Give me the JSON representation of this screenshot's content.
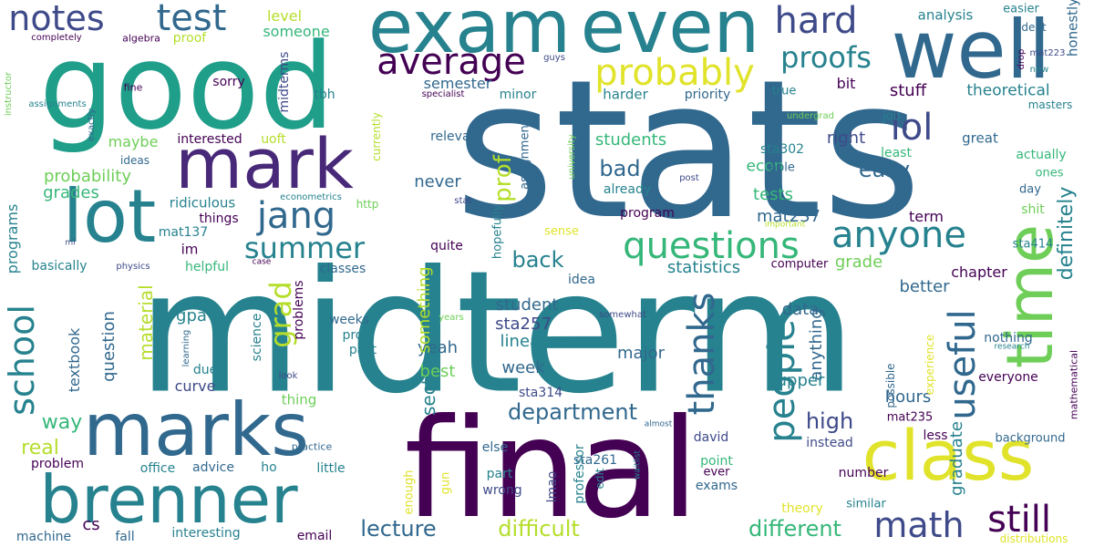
{
  "words": [
    {
      "text": "stats",
      "color": "#31688e"
    },
    {
      "text": "midterm",
      "color": "#26828e"
    },
    {
      "text": "good",
      "color": "#1f9e89"
    },
    {
      "text": "final",
      "color": "#440154"
    },
    {
      "text": "exam",
      "color": "#26828e"
    },
    {
      "text": "even",
      "color": "#26828e"
    },
    {
      "text": "well",
      "color": "#31688e"
    },
    {
      "text": "mark",
      "color": "#482878"
    },
    {
      "text": "lot",
      "color": "#26828e"
    },
    {
      "text": "marks",
      "color": "#31688e"
    },
    {
      "text": "brenner",
      "color": "#26828e"
    },
    {
      "text": "class",
      "color": "#e0e32a"
    },
    {
      "text": "time",
      "color": "#6ece58"
    },
    {
      "text": "notes",
      "color": "#3e4a89"
    },
    {
      "text": "test",
      "color": "#31688e"
    },
    {
      "text": "hard",
      "color": "#3e4a89"
    },
    {
      "text": "average",
      "color": "#440154"
    },
    {
      "text": "probably",
      "color": "#e0e32a"
    },
    {
      "text": "proofs",
      "color": "#26828e"
    },
    {
      "text": "lol",
      "color": "#3e4a89"
    },
    {
      "text": "jang",
      "color": "#31688e"
    },
    {
      "text": "summer",
      "color": "#26828e"
    },
    {
      "text": "questions",
      "color": "#35b779"
    },
    {
      "text": "anyone",
      "color": "#26828e"
    },
    {
      "text": "school",
      "color": "#26828e"
    },
    {
      "text": "grad",
      "color": "#b5de2b"
    },
    {
      "text": "thanks",
      "color": "#31688e"
    },
    {
      "text": "people",
      "color": "#26828e"
    },
    {
      "text": "useful",
      "color": "#31688e"
    },
    {
      "text": "math",
      "color": "#3e4a89"
    },
    {
      "text": "still",
      "color": "#440154"
    },
    {
      "text": "department",
      "color": "#31688e"
    },
    {
      "text": "lecture",
      "color": "#31688e"
    },
    {
      "text": "difficult",
      "color": "#b5de2b"
    },
    {
      "text": "different",
      "color": "#35b779"
    },
    {
      "text": "high",
      "color": "#3e4a89"
    },
    {
      "text": "easy",
      "color": "#31688e"
    },
    {
      "text": "prof",
      "color": "#b5de2b"
    },
    {
      "text": "back",
      "color": "#26828e"
    },
    {
      "text": "bad",
      "color": "#31688e"
    },
    {
      "text": "definitely",
      "color": "#26828e"
    },
    {
      "text": "graduate",
      "color": "#26828e"
    },
    {
      "text": "material",
      "color": "#b5de2b"
    },
    {
      "text": "way",
      "color": "#35b779"
    },
    {
      "text": "real",
      "color": "#b5de2b"
    },
    {
      "text": "section",
      "color": "#26828e"
    },
    {
      "text": "anything",
      "color": "#31688e"
    },
    {
      "text": "data",
      "color": "#31688e"
    },
    {
      "text": "upper",
      "color": "#26828e"
    },
    {
      "text": "hours",
      "color": "#31688e"
    },
    {
      "text": "week",
      "color": "#31688e"
    },
    {
      "text": "major",
      "color": "#31688e"
    },
    {
      "text": "best",
      "color": "#6ece58"
    },
    {
      "text": "yeah",
      "color": "#31688e"
    },
    {
      "text": "linear",
      "color": "#26828e"
    },
    {
      "text": "sta257",
      "color": "#3e4a89"
    },
    {
      "text": "student",
      "color": "#31688e"
    },
    {
      "text": "something",
      "color": "#b5de2b"
    },
    {
      "text": "statistics",
      "color": "#26828e"
    },
    {
      "text": "grade",
      "color": "#6ece58"
    },
    {
      "text": "better",
      "color": "#31688e"
    },
    {
      "text": "chapter",
      "color": "#440154"
    },
    {
      "text": "tests",
      "color": "#35b779"
    },
    {
      "text": "mat237",
      "color": "#31688e"
    },
    {
      "text": "term",
      "color": "#440154"
    },
    {
      "text": "students",
      "color": "#35b779"
    },
    {
      "text": "never",
      "color": "#31688e"
    },
    {
      "text": "probability",
      "color": "#6ece58"
    },
    {
      "text": "grades",
      "color": "#35b779"
    },
    {
      "text": "maybe",
      "color": "#6ece58"
    },
    {
      "text": "programs",
      "color": "#26828e"
    },
    {
      "text": "gpa",
      "color": "#26828e"
    },
    {
      "text": "question",
      "color": "#31688e"
    },
    {
      "text": "textbook",
      "color": "#31688e"
    },
    {
      "text": "level",
      "color": "#b5de2b"
    },
    {
      "text": "someone",
      "color": "#35b779"
    },
    {
      "text": "analysis",
      "color": "#26828e"
    },
    {
      "text": "easier",
      "color": "#26828e"
    },
    {
      "text": "honestly",
      "color": "#31688e"
    },
    {
      "text": "dept",
      "color": "#31688e"
    },
    {
      "text": "new",
      "color": "#26828e"
    },
    {
      "text": "semester",
      "color": "#31688e"
    },
    {
      "text": "minor",
      "color": "#26828e"
    },
    {
      "text": "harder",
      "color": "#26828e"
    },
    {
      "text": "priority",
      "color": "#31688e"
    },
    {
      "text": "true",
      "color": "#26828e"
    },
    {
      "text": "bit",
      "color": "#440154"
    },
    {
      "text": "stuff",
      "color": "#440154"
    },
    {
      "text": "theoretical",
      "color": "#26828e"
    },
    {
      "text": "masters",
      "color": "#26828e"
    },
    {
      "text": "midterms",
      "color": "#3e4a89"
    },
    {
      "text": "sorry",
      "color": "#440154"
    },
    {
      "text": "tbh",
      "color": "#26828e"
    },
    {
      "text": "job",
      "color": "#26828e"
    },
    {
      "text": "great",
      "color": "#31688e"
    },
    {
      "text": "actually",
      "color": "#35b779"
    },
    {
      "text": "least",
      "color": "#35b779"
    },
    {
      "text": "right",
      "color": "#3e4a89"
    },
    {
      "text": "sta302",
      "color": "#26828e"
    },
    {
      "text": "econ",
      "color": "#35b779"
    },
    {
      "text": "able",
      "color": "#31688e"
    },
    {
      "text": "ones",
      "color": "#35b779"
    },
    {
      "text": "day",
      "color": "#31688e"
    },
    {
      "text": "shit",
      "color": "#6ece58"
    },
    {
      "text": "sta414",
      "color": "#26828e"
    },
    {
      "text": "interested",
      "color": "#440154"
    },
    {
      "text": "uoft",
      "color": "#b5de2b"
    },
    {
      "text": "relevant",
      "color": "#31688e"
    },
    {
      "text": "assignment",
      "color": "#31688e"
    },
    {
      "text": "currently",
      "color": "#b5de2b"
    },
    {
      "text": "ideas",
      "color": "#31688e"
    },
    {
      "text": "ridiculous",
      "color": "#26828e"
    },
    {
      "text": "things",
      "color": "#440154"
    },
    {
      "text": "mat137",
      "color": "#26828e"
    },
    {
      "text": "im",
      "color": "#440154"
    },
    {
      "text": "helpful",
      "color": "#35b779"
    },
    {
      "text": "basically",
      "color": "#26828e"
    },
    {
      "text": "physics",
      "color": "#3e4a89"
    },
    {
      "text": "classes",
      "color": "#31688e"
    },
    {
      "text": "program",
      "color": "#440154"
    },
    {
      "text": "already",
      "color": "#26828e"
    },
    {
      "text": "hopefully",
      "color": "#26828e"
    },
    {
      "text": "sense",
      "color": "#e0e32a"
    },
    {
      "text": "quite",
      "color": "#440154"
    },
    {
      "text": "idea",
      "color": "#31688e"
    },
    {
      "text": "computer",
      "color": "#440154"
    },
    {
      "text": "problems",
      "color": "#440154"
    },
    {
      "text": "science",
      "color": "#26828e"
    },
    {
      "text": "weeks",
      "color": "#31688e"
    },
    {
      "text": "profs",
      "color": "#26828e"
    },
    {
      "text": "past",
      "color": "#26828e"
    },
    {
      "text": "due",
      "color": "#26828e"
    },
    {
      "text": "curve",
      "color": "#3e4a89"
    },
    {
      "text": "thing",
      "color": "#6ece58"
    },
    {
      "text": "sta314",
      "color": "#3e4a89"
    },
    {
      "text": "else",
      "color": "#31688e"
    },
    {
      "text": "part",
      "color": "#26828e"
    },
    {
      "text": "wrong",
      "color": "#3e4a89"
    },
    {
      "text": "lmao",
      "color": "#3e4a89"
    },
    {
      "text": "sta261",
      "color": "#31688e"
    },
    {
      "text": "professor",
      "color": "#26828e"
    },
    {
      "text": "david",
      "color": "#3e4a89"
    },
    {
      "text": "point",
      "color": "#35b779"
    },
    {
      "text": "ever",
      "color": "#440154"
    },
    {
      "text": "exams",
      "color": "#31688e"
    },
    {
      "text": "instead",
      "color": "#3e4a89"
    },
    {
      "text": "number",
      "color": "#440154"
    },
    {
      "text": "similar",
      "color": "#26828e"
    },
    {
      "text": "theory",
      "color": "#e0e32a"
    },
    {
      "text": "less",
      "color": "#440154"
    },
    {
      "text": "background",
      "color": "#31688e"
    },
    {
      "text": "mat235",
      "color": "#440154"
    },
    {
      "text": "possible",
      "color": "#31688e"
    },
    {
      "text": "experience",
      "color": "#e0e32a"
    },
    {
      "text": "everyone",
      "color": "#440154"
    },
    {
      "text": "nothing",
      "color": "#31688e"
    },
    {
      "text": "mathematical",
      "color": "#440154"
    },
    {
      "text": "distributions",
      "color": "#e0e32a"
    },
    {
      "text": "research",
      "color": "#26828e"
    },
    {
      "text": "problem",
      "color": "#440154"
    },
    {
      "text": "advice",
      "color": "#31688e"
    },
    {
      "text": "office",
      "color": "#26828e"
    },
    {
      "text": "ho",
      "color": "#26828e"
    },
    {
      "text": "little",
      "color": "#26828e"
    },
    {
      "text": "cs",
      "color": "#440154"
    },
    {
      "text": "machine",
      "color": "#31688e"
    },
    {
      "text": "fall",
      "color": "#31688e"
    },
    {
      "text": "interesting",
      "color": "#26828e"
    },
    {
      "text": "email",
      "color": "#440154"
    },
    {
      "text": "enough",
      "color": "#e0e32a"
    },
    {
      "text": "gun",
      "color": "#e0e32a"
    },
    {
      "text": "edit",
      "color": "#26828e"
    },
    {
      "text": "waitlist",
      "color": "#26828e"
    },
    {
      "text": "almost",
      "color": "#31688e"
    },
    {
      "text": "practice",
      "color": "#31688e"
    },
    {
      "text": "look",
      "color": "#3e4a89"
    },
    {
      "text": "learning",
      "color": "#31688e"
    },
    {
      "text": "years",
      "color": "#6ece58"
    },
    {
      "text": "somewhat",
      "color": "#3e4a89"
    },
    {
      "text": "case",
      "color": "#440154"
    },
    {
      "text": "important",
      "color": "#b5de2b"
    },
    {
      "text": "econometrics",
      "color": "#26828e"
    },
    {
      "text": "http",
      "color": "#6ece58"
    },
    {
      "text": "stat",
      "color": "#3e4a89"
    },
    {
      "text": "post",
      "color": "#3e4a89"
    },
    {
      "text": "university",
      "color": "#6ece58"
    },
    {
      "text": "completely",
      "color": "#440154"
    },
    {
      "text": "algebra",
      "color": "#440154"
    },
    {
      "text": "proof",
      "color": "#b5de2b"
    },
    {
      "text": "instructor",
      "color": "#6ece58"
    },
    {
      "text": "assignments",
      "color": "#26828e"
    },
    {
      "text": "exactly",
      "color": "#31688e"
    },
    {
      "text": "fine",
      "color": "#440154"
    },
    {
      "text": "guys",
      "color": "#3e4a89"
    },
    {
      "text": "specialist",
      "color": "#440154"
    },
    {
      "text": "undergrad",
      "color": "#6ece58"
    },
    {
      "text": "mat223",
      "color": "#3e4a89"
    },
    {
      "text": "drop",
      "color": "#440154"
    },
    {
      "text": "ml",
      "color": "#3e4a89"
    }
  ]
}
